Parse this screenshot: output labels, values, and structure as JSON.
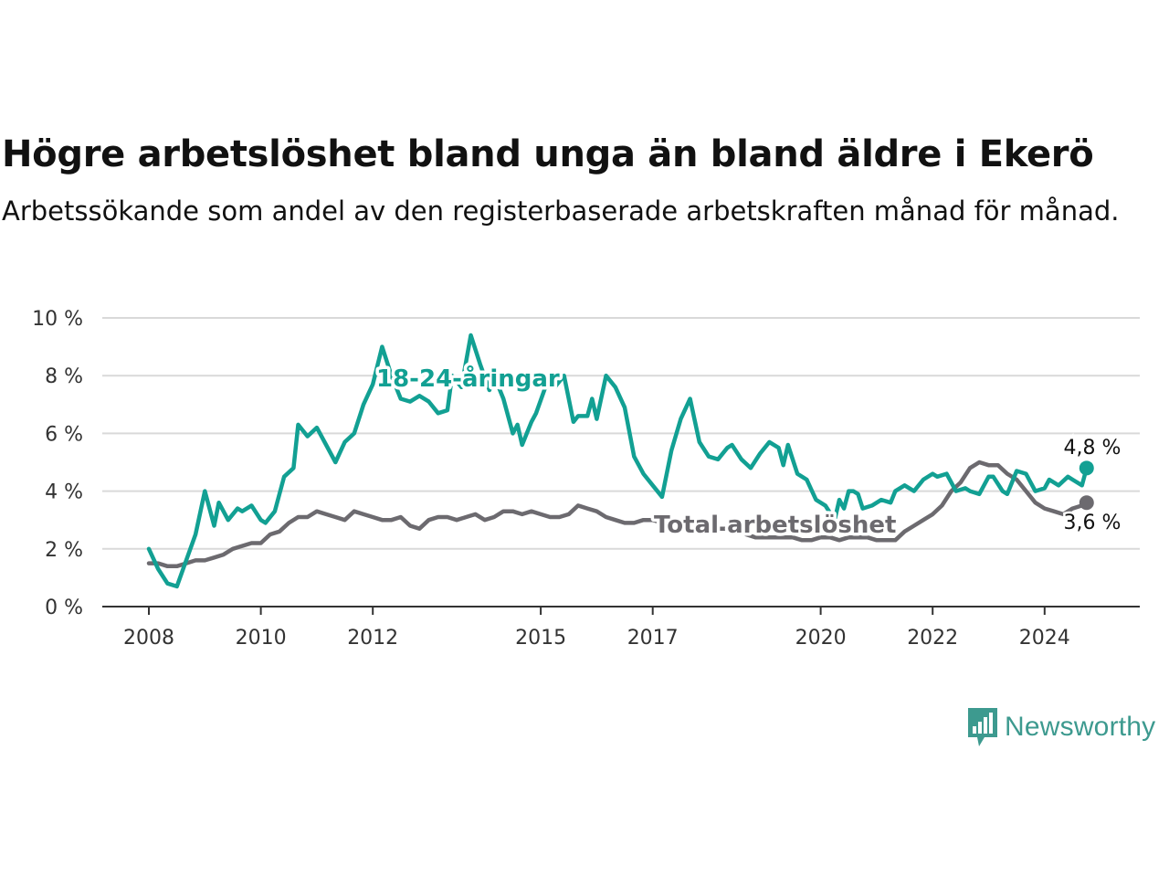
{
  "title": "Högre arbetslöshet bland unga än bland äldre i Ekerö",
  "subtitle": "Arbetssökande som andel av den registerbaserade arbetskraften månad för månad.",
  "logo": {
    "text": "Newsworthy",
    "icon": "newsworthy-chart-bubble-icon"
  },
  "colors": {
    "youth": "#12a093",
    "total": "#6c6a6f",
    "grid": "#d9d9d9",
    "axis": "#333333"
  },
  "chart_data": {
    "type": "line",
    "x_range": [
      "2008-01",
      "2024-10"
    ],
    "ylim": [
      0,
      10
    ],
    "y_ticks": [
      0,
      2,
      4,
      6,
      8,
      10
    ],
    "y_tick_labels": [
      "0 %",
      "2 %",
      "4 %",
      "6 %",
      "8 %",
      "10 %"
    ],
    "x_ticks": [
      2008,
      2010,
      2012,
      2015,
      2017,
      2020,
      2022,
      2024
    ],
    "x_tick_labels": [
      "2008",
      "2010",
      "2012",
      "2015",
      "2017",
      "2020",
      "2022",
      "2024"
    ],
    "grid": "horizontal",
    "series": [
      {
        "name": "18-24-åringar",
        "color": "#12a093",
        "end_label": "4,8 %",
        "points": [
          [
            "2008-01",
            2.0
          ],
          [
            "2008-03",
            1.3
          ],
          [
            "2008-05",
            0.8
          ],
          [
            "2008-07",
            0.7
          ],
          [
            "2008-09",
            1.6
          ],
          [
            "2008-11",
            2.5
          ],
          [
            "2009-01",
            4.0
          ],
          [
            "2009-03",
            2.8
          ],
          [
            "2009-04",
            3.6
          ],
          [
            "2009-06",
            3.0
          ],
          [
            "2009-08",
            3.4
          ],
          [
            "2009-09",
            3.3
          ],
          [
            "2009-11",
            3.5
          ],
          [
            "2010-01",
            3.0
          ],
          [
            "2010-02",
            2.9
          ],
          [
            "2010-04",
            3.3
          ],
          [
            "2010-06",
            4.5
          ],
          [
            "2010-08",
            4.8
          ],
          [
            "2010-09",
            6.3
          ],
          [
            "2010-11",
            5.9
          ],
          [
            "2011-01",
            6.2
          ],
          [
            "2011-03",
            5.6
          ],
          [
            "2011-05",
            5.0
          ],
          [
            "2011-07",
            5.7
          ],
          [
            "2011-09",
            6.0
          ],
          [
            "2011-11",
            7.0
          ],
          [
            "2012-01",
            7.7
          ],
          [
            "2012-03",
            9.0
          ],
          [
            "2012-05",
            8.0
          ],
          [
            "2012-07",
            7.2
          ],
          [
            "2012-09",
            7.1
          ],
          [
            "2012-11",
            7.3
          ],
          [
            "2013-01",
            7.1
          ],
          [
            "2013-03",
            6.7
          ],
          [
            "2013-05",
            6.8
          ],
          [
            "2013-06",
            8.0
          ],
          [
            "2013-08",
            7.6
          ],
          [
            "2013-10",
            9.4
          ],
          [
            "2013-12",
            8.4
          ],
          [
            "2014-02",
            7.5
          ],
          [
            "2014-03",
            8.0
          ],
          [
            "2014-05",
            7.2
          ],
          [
            "2014-07",
            6.0
          ],
          [
            "2014-08",
            6.3
          ],
          [
            "2014-09",
            5.6
          ],
          [
            "2014-11",
            6.4
          ],
          [
            "2014-12",
            6.7
          ],
          [
            "2015-02",
            7.6
          ],
          [
            "2015-04",
            7.6
          ],
          [
            "2015-06",
            8.0
          ],
          [
            "2015-08",
            6.4
          ],
          [
            "2015-09",
            6.6
          ],
          [
            "2015-11",
            6.6
          ],
          [
            "2015-12",
            7.2
          ],
          [
            "2016-01",
            6.5
          ],
          [
            "2016-03",
            8.0
          ],
          [
            "2016-05",
            7.6
          ],
          [
            "2016-07",
            6.9
          ],
          [
            "2016-09",
            5.2
          ],
          [
            "2016-11",
            4.6
          ],
          [
            "2017-01",
            4.2
          ],
          [
            "2017-03",
            3.8
          ],
          [
            "2017-05",
            5.4
          ],
          [
            "2017-07",
            6.5
          ],
          [
            "2017-09",
            7.2
          ],
          [
            "2017-11",
            5.7
          ],
          [
            "2018-01",
            5.2
          ],
          [
            "2018-03",
            5.1
          ],
          [
            "2018-05",
            5.5
          ],
          [
            "2018-06",
            5.6
          ],
          [
            "2018-08",
            5.1
          ],
          [
            "2018-10",
            4.8
          ],
          [
            "2018-12",
            5.3
          ],
          [
            "2019-02",
            5.7
          ],
          [
            "2019-04",
            5.5
          ],
          [
            "2019-05",
            4.9
          ],
          [
            "2019-06",
            5.6
          ],
          [
            "2019-08",
            4.6
          ],
          [
            "2019-09",
            4.5
          ],
          [
            "2019-10",
            4.4
          ],
          [
            "2019-12",
            3.7
          ],
          [
            "2020-02",
            3.5
          ],
          [
            "2020-04",
            3.0
          ],
          [
            "2020-05",
            3.7
          ],
          [
            "2020-06",
            3.4
          ],
          [
            "2020-07",
            4.0
          ],
          [
            "2020-08",
            4.0
          ],
          [
            "2020-09",
            3.9
          ],
          [
            "2020-10",
            3.4
          ],
          [
            "2020-12",
            3.5
          ],
          [
            "2021-02",
            3.7
          ],
          [
            "2021-04",
            3.6
          ],
          [
            "2021-05",
            4.0
          ],
          [
            "2021-07",
            4.2
          ],
          [
            "2021-09",
            4.0
          ],
          [
            "2021-11",
            4.4
          ],
          [
            "2022-01",
            4.6
          ],
          [
            "2022-02",
            4.5
          ],
          [
            "2022-04",
            4.6
          ],
          [
            "2022-06",
            4.0
          ],
          [
            "2022-08",
            4.1
          ],
          [
            "2022-09",
            4.0
          ],
          [
            "2022-11",
            3.9
          ],
          [
            "2023-01",
            4.5
          ],
          [
            "2023-02",
            4.5
          ],
          [
            "2023-04",
            4.0
          ],
          [
            "2023-05",
            3.9
          ],
          [
            "2023-07",
            4.7
          ],
          [
            "2023-09",
            4.6
          ],
          [
            "2023-11",
            4.0
          ],
          [
            "2024-01",
            4.1
          ],
          [
            "2024-02",
            4.4
          ],
          [
            "2024-04",
            4.2
          ],
          [
            "2024-06",
            4.5
          ],
          [
            "2024-07",
            4.4
          ],
          [
            "2024-09",
            4.2
          ],
          [
            "2024-10",
            4.8
          ]
        ]
      },
      {
        "name": "Total arbetslöshet",
        "color": "#6c6a6f",
        "end_label": "3,6 %",
        "points": [
          [
            "2008-01",
            1.5
          ],
          [
            "2008-03",
            1.5
          ],
          [
            "2008-05",
            1.4
          ],
          [
            "2008-07",
            1.4
          ],
          [
            "2008-09",
            1.5
          ],
          [
            "2008-11",
            1.6
          ],
          [
            "2009-01",
            1.6
          ],
          [
            "2009-03",
            1.7
          ],
          [
            "2009-05",
            1.8
          ],
          [
            "2009-07",
            2.0
          ],
          [
            "2009-09",
            2.1
          ],
          [
            "2009-11",
            2.2
          ],
          [
            "2010-01",
            2.2
          ],
          [
            "2010-03",
            2.5
          ],
          [
            "2010-05",
            2.6
          ],
          [
            "2010-07",
            2.9
          ],
          [
            "2010-09",
            3.1
          ],
          [
            "2010-11",
            3.1
          ],
          [
            "2011-01",
            3.3
          ],
          [
            "2011-03",
            3.2
          ],
          [
            "2011-05",
            3.1
          ],
          [
            "2011-07",
            3.0
          ],
          [
            "2011-09",
            3.3
          ],
          [
            "2011-11",
            3.2
          ],
          [
            "2012-01",
            3.1
          ],
          [
            "2012-03",
            3.0
          ],
          [
            "2012-05",
            3.0
          ],
          [
            "2012-07",
            3.1
          ],
          [
            "2012-09",
            2.8
          ],
          [
            "2012-11",
            2.7
          ],
          [
            "2013-01",
            3.0
          ],
          [
            "2013-03",
            3.1
          ],
          [
            "2013-05",
            3.1
          ],
          [
            "2013-07",
            3.0
          ],
          [
            "2013-09",
            3.1
          ],
          [
            "2013-11",
            3.2
          ],
          [
            "2014-01",
            3.0
          ],
          [
            "2014-03",
            3.1
          ],
          [
            "2014-05",
            3.3
          ],
          [
            "2014-07",
            3.3
          ],
          [
            "2014-09",
            3.2
          ],
          [
            "2014-11",
            3.3
          ],
          [
            "2015-01",
            3.2
          ],
          [
            "2015-03",
            3.1
          ],
          [
            "2015-05",
            3.1
          ],
          [
            "2015-07",
            3.2
          ],
          [
            "2015-09",
            3.5
          ],
          [
            "2015-11",
            3.4
          ],
          [
            "2016-01",
            3.3
          ],
          [
            "2016-03",
            3.1
          ],
          [
            "2016-05",
            3.0
          ],
          [
            "2016-07",
            2.9
          ],
          [
            "2016-09",
            2.9
          ],
          [
            "2016-11",
            3.0
          ],
          [
            "2017-01",
            3.0
          ],
          [
            "2017-03",
            2.9
          ],
          [
            "2017-05",
            2.8
          ],
          [
            "2017-07",
            2.9
          ],
          [
            "2017-09",
            2.8
          ],
          [
            "2017-11",
            2.6
          ],
          [
            "2018-01",
            2.6
          ],
          [
            "2018-03",
            2.7
          ],
          [
            "2018-05",
            2.7
          ],
          [
            "2018-07",
            2.8
          ],
          [
            "2018-09",
            2.5
          ],
          [
            "2018-11",
            2.4
          ],
          [
            "2019-01",
            2.4
          ],
          [
            "2019-03",
            2.4
          ],
          [
            "2019-05",
            2.4
          ],
          [
            "2019-07",
            2.4
          ],
          [
            "2019-09",
            2.3
          ],
          [
            "2019-11",
            2.3
          ],
          [
            "2020-01",
            2.4
          ],
          [
            "2020-03",
            2.4
          ],
          [
            "2020-05",
            2.3
          ],
          [
            "2020-07",
            2.4
          ],
          [
            "2020-09",
            2.4
          ],
          [
            "2020-11",
            2.4
          ],
          [
            "2021-01",
            2.3
          ],
          [
            "2021-03",
            2.3
          ],
          [
            "2021-05",
            2.3
          ],
          [
            "2021-07",
            2.6
          ],
          [
            "2021-09",
            2.8
          ],
          [
            "2021-11",
            3.0
          ],
          [
            "2022-01",
            3.2
          ],
          [
            "2022-03",
            3.5
          ],
          [
            "2022-05",
            4.0
          ],
          [
            "2022-07",
            4.3
          ],
          [
            "2022-09",
            4.8
          ],
          [
            "2022-11",
            5.0
          ],
          [
            "2023-01",
            4.9
          ],
          [
            "2023-03",
            4.9
          ],
          [
            "2023-05",
            4.6
          ],
          [
            "2023-07",
            4.4
          ],
          [
            "2023-09",
            4.0
          ],
          [
            "2023-11",
            3.6
          ],
          [
            "2024-01",
            3.4
          ],
          [
            "2024-03",
            3.3
          ],
          [
            "2024-05",
            3.2
          ],
          [
            "2024-07",
            3.4
          ],
          [
            "2024-09",
            3.5
          ],
          [
            "2024-10",
            3.6
          ]
        ]
      }
    ]
  }
}
